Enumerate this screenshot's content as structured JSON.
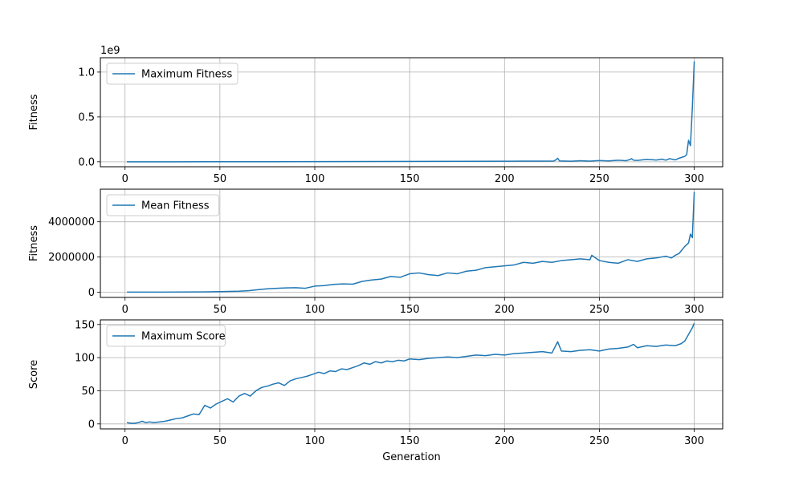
{
  "chart_data": [
    {
      "type": "line",
      "ylabel": "Fitness",
      "xlabel": "",
      "offset_label": "1e9",
      "legend": {
        "placement": "top-left",
        "entries": [
          "Maximum Fitness"
        ]
      },
      "grid": true,
      "color": "#1f77b4",
      "xlim": [
        -13,
        315
      ],
      "ylim": [
        -0.055,
        1.16
      ],
      "x_ticks": [
        0,
        50,
        100,
        150,
        200,
        250,
        300
      ],
      "x_tick_labels": [
        "0",
        "50",
        "100",
        "150",
        "200",
        "250",
        "300"
      ],
      "y_ticks": [
        0.0,
        0.5,
        1.0
      ],
      "y_tick_labels": [
        "0.0",
        "0.5",
        "1.0"
      ],
      "series": [
        {
          "name": "Maximum Fitness",
          "x": [
            1,
            25,
            50,
            75,
            100,
            125,
            150,
            175,
            200,
            210,
            220,
            226,
            227,
            228,
            229,
            235,
            240,
            245,
            250,
            255,
            260,
            264,
            266,
            267,
            268,
            270,
            275,
            280,
            283,
            285,
            287,
            290,
            292,
            295,
            296,
            297,
            298,
            299,
            300
          ],
          "y": [
            0.0,
            0.0002,
            0.0005,
            0.001,
            0.002,
            0.003,
            0.004,
            0.005,
            0.006,
            0.007,
            0.008,
            0.009,
            0.02,
            0.04,
            0.01,
            0.006,
            0.012,
            0.008,
            0.014,
            0.01,
            0.018,
            0.012,
            0.025,
            0.035,
            0.018,
            0.015,
            0.028,
            0.02,
            0.03,
            0.018,
            0.035,
            0.022,
            0.04,
            0.06,
            0.08,
            0.24,
            0.18,
            0.6,
            1.12
          ]
        }
      ]
    },
    {
      "type": "line",
      "ylabel": "Fitness",
      "xlabel": "",
      "legend": {
        "placement": "top-left",
        "entries": [
          "Mean Fitness"
        ]
      },
      "grid": true,
      "color": "#1f77b4",
      "xlim": [
        -13,
        315
      ],
      "ylim": [
        -290000,
        5850000
      ],
      "x_ticks": [
        0,
        50,
        100,
        150,
        200,
        250,
        300
      ],
      "x_tick_labels": [
        "0",
        "50",
        "100",
        "150",
        "200",
        "250",
        "300"
      ],
      "y_ticks": [
        0,
        2000000,
        4000000
      ],
      "y_tick_labels": [
        "0",
        "2000000",
        "4000000"
      ],
      "series": [
        {
          "name": "Mean Fitness",
          "x": [
            1,
            20,
            40,
            50,
            60,
            65,
            70,
            75,
            80,
            85,
            90,
            95,
            100,
            105,
            110,
            115,
            120,
            125,
            130,
            135,
            140,
            145,
            150,
            155,
            160,
            165,
            170,
            175,
            180,
            185,
            190,
            195,
            200,
            205,
            210,
            215,
            220,
            225,
            230,
            235,
            240,
            245,
            246,
            250,
            255,
            260,
            265,
            270,
            275,
            280,
            285,
            288,
            290,
            292,
            295,
            297,
            298,
            299,
            300
          ],
          "y": [
            10000,
            12000,
            20000,
            40000,
            60000,
            90000,
            150000,
            200000,
            230000,
            250000,
            260000,
            230000,
            350000,
            380000,
            450000,
            480000,
            460000,
            620000,
            700000,
            750000,
            900000,
            850000,
            1050000,
            1100000,
            1000000,
            950000,
            1100000,
            1050000,
            1200000,
            1250000,
            1400000,
            1450000,
            1500000,
            1550000,
            1700000,
            1650000,
            1750000,
            1700000,
            1800000,
            1850000,
            1900000,
            1850000,
            2100000,
            1800000,
            1700000,
            1650000,
            1850000,
            1750000,
            1900000,
            1950000,
            2050000,
            1950000,
            2100000,
            2200000,
            2600000,
            2800000,
            3300000,
            3100000,
            5700000
          ]
        }
      ]
    },
    {
      "type": "line",
      "ylabel": "Score",
      "xlabel": "Generation",
      "legend": {
        "placement": "top-left",
        "entries": [
          "Maximum Score"
        ]
      },
      "grid": true,
      "color": "#1f77b4",
      "xlim": [
        -13,
        315
      ],
      "ylim": [
        -7.5,
        157
      ],
      "x_ticks": [
        0,
        50,
        100,
        150,
        200,
        250,
        300
      ],
      "x_tick_labels": [
        "0",
        "50",
        "100",
        "150",
        "200",
        "250",
        "300"
      ],
      "y_ticks": [
        0,
        50,
        100,
        150
      ],
      "y_tick_labels": [
        "0",
        "50",
        "100",
        "150"
      ],
      "series": [
        {
          "name": "Maximum Score",
          "x": [
            1,
            3,
            5,
            7,
            9,
            11,
            13,
            15,
            18,
            21,
            24,
            27,
            30,
            33,
            36,
            39,
            42,
            45,
            48,
            51,
            54,
            57,
            60,
            63,
            66,
            69,
            72,
            75,
            78,
            81,
            84,
            87,
            90,
            93,
            96,
            99,
            102,
            105,
            108,
            111,
            114,
            117,
            120,
            123,
            126,
            129,
            132,
            135,
            138,
            141,
            144,
            147,
            150,
            155,
            160,
            165,
            170,
            175,
            180,
            185,
            190,
            195,
            200,
            205,
            210,
            215,
            220,
            225,
            228,
            230,
            235,
            240,
            245,
            250,
            255,
            260,
            265,
            268,
            270,
            275,
            280,
            285,
            290,
            293,
            295,
            297,
            298,
            299,
            300
          ],
          "y": [
            2,
            1,
            1,
            2,
            4,
            2,
            3,
            2,
            3,
            4,
            6,
            8,
            9,
            12,
            15,
            14,
            28,
            24,
            30,
            34,
            38,
            33,
            42,
            46,
            42,
            50,
            55,
            57,
            60,
            62,
            58,
            65,
            68,
            70,
            72,
            75,
            78,
            76,
            80,
            79,
            83,
            82,
            85,
            88,
            92,
            90,
            94,
            92,
            95,
            94,
            96,
            95,
            98,
            97,
            99,
            100,
            101,
            100,
            102,
            104,
            103,
            105,
            104,
            106,
            107,
            108,
            109,
            107,
            124,
            110,
            109,
            111,
            112,
            110,
            113,
            114,
            116,
            120,
            115,
            118,
            117,
            119,
            118,
            121,
            125,
            135,
            140,
            145,
            152
          ]
        }
      ]
    }
  ]
}
